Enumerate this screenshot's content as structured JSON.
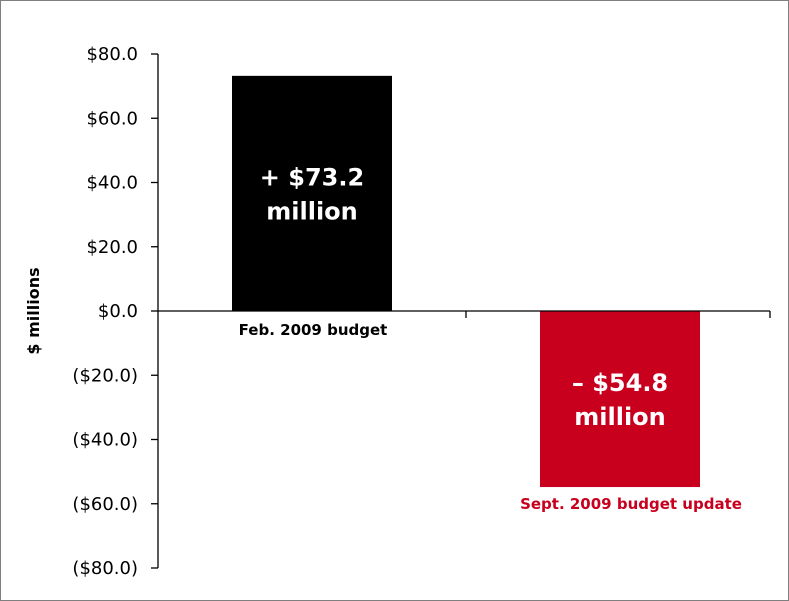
{
  "chart_data": {
    "type": "bar",
    "ylabel": "$ millions",
    "ylim": [
      -80,
      80
    ],
    "y_ticks": [
      80,
      60,
      40,
      20,
      0,
      -20,
      -40,
      -60,
      -80
    ],
    "y_tick_labels": [
      "$80.0",
      "$60.0",
      "$40.0",
      "$20.0",
      "$0.0",
      "($20.0)",
      "($40.0)",
      "($60.0)",
      "($80.0)"
    ],
    "categories": [
      "Feb. 2009 budget",
      "Sept. 2009 budget update"
    ],
    "values": [
      73.2,
      -54.8
    ],
    "bar_labels": [
      [
        "+ $73.2",
        "million"
      ],
      [
        "– $54.8",
        "million"
      ]
    ],
    "colors": [
      "#000000",
      "#c8001e"
    ],
    "category_label_colors": [
      "#000000",
      "#c8001e"
    ],
    "grid": false,
    "legend": "none"
  }
}
